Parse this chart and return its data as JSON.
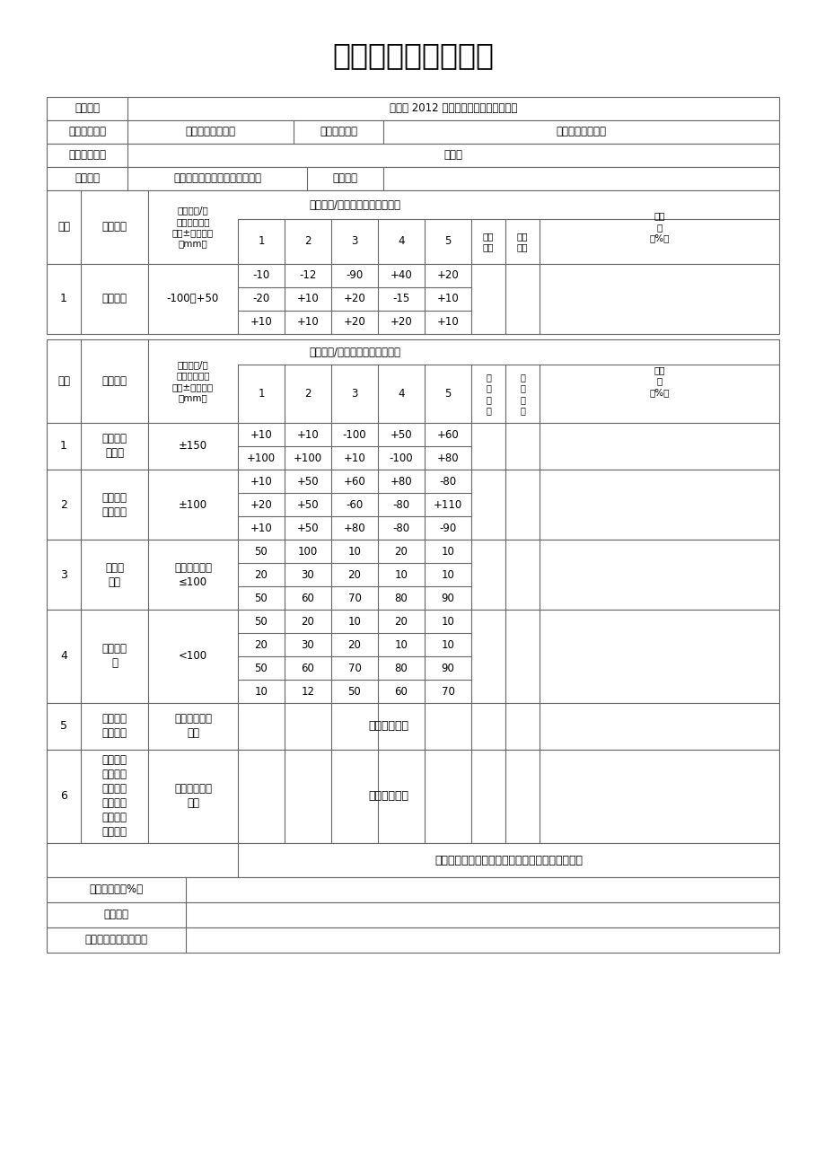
{
  "title": "检验批质量检验记录",
  "title_fontsize": 24,
  "background_color": "#ffffff",
  "line_color": "#666666",
  "font_color": "#000000",
  "project_name": "永善县 2012 年保障性住房小区绿化工程",
  "unit_project": "小区绿化水电工程",
  "sub_dept": "分部工程名称",
  "sub_dept_val": "小区绿化水电工程",
  "sub_item": "分项工程名称",
  "sub_item_val": "挖管沟",
  "contractor": "昭通交投园林景观有限责任公司",
  "pm_label": "项目经理",
  "main_check_header": "检查结果/实测点偏差值或实测值",
  "gen_check_header": "检查结果/实测点偏差值或实测值",
  "basis_label": "检验依据/允\n许偏差（规定\n值或±偏差值）\n（mm）",
  "seq_label": "序号",
  "main_label": "主控项目",
  "gen_label": "一般项目",
  "should_points": "应测\n点数",
  "pass_points": "合格\n点数",
  "pass_rate": "合格\n率\n（%）",
  "should_points2": "应\n测\n点\n数",
  "pass_points2": "合\n格\n点\n数",
  "row1_item": "沟底标高",
  "row1_basis": "-100～+50",
  "row1_data": [
    [
      "-10",
      "-12",
      "-90",
      "+40",
      "+20"
    ],
    [
      "-20",
      "+10",
      "+20",
      "-15",
      "+10"
    ],
    [
      "+10",
      "+10",
      "+20",
      "+20",
      "+10"
    ]
  ],
  "gen_rows": [
    {
      "seq": "1",
      "item": "管沟中心\n线偏移",
      "basis": "±150",
      "data": [
        [
          "+10",
          "+10",
          "-100",
          "+50",
          "+60"
        ],
        [
          "+100",
          "+100",
          "+10",
          "-100",
          "+80"
        ]
      ]
    },
    {
      "seq": "2",
      "item": "沟底宽度\n允许偏差",
      "basis": "±100",
      "data": [
        [
          "+10",
          "+50",
          "+60",
          "+80",
          "-80"
        ],
        [
          "+20",
          "+50",
          "-60",
          "-80",
          "+110"
        ],
        [
          "+10",
          "+50",
          "+80",
          "-80",
          "-90"
        ]
      ]
    },
    {
      "seq": "3",
      "item": "沟底平\n整度",
      "basis": "相邻两点高差\n≤100",
      "data": [
        [
          "50",
          "100",
          "10",
          "20",
          "10"
        ],
        [
          "20",
          "30",
          "20",
          "10",
          "10"
        ],
        [
          "50",
          "60",
          "70",
          "80",
          "90"
        ]
      ]
    },
    {
      "seq": "4",
      "item": "变坡点位\n移",
      "basis": "<100",
      "data": [
        [
          "50",
          "20",
          "10",
          "20",
          "10"
        ],
        [
          "20",
          "30",
          "20",
          "10",
          "10"
        ],
        [
          "50",
          "60",
          "70",
          "80",
          "90"
        ],
        [
          "10",
          "12",
          "50",
          "60",
          "70"
        ]
      ]
    },
    {
      "seq": "5",
      "item": "直线段管\n沟应顺直",
      "basis": "是否符合设计\n要求",
      "data_text": "符合设计要求",
      "n_rows": 2
    },
    {
      "seq": "6",
      "item": "曲线段管\n沟应圆滑\n过渡，并\n应保证设\n计要求的\n曲率半径",
      "basis": "是否符合设计\n要求",
      "data_text": "符合设计要求",
      "n_rows": 4
    }
  ],
  "comment": "沟底标高达到要求，管沟中心及沟底宽度符合要求",
  "bottom_rows": [
    "平均合格率（%）",
    "检验结论",
    "监理（建设）单位意见"
  ]
}
